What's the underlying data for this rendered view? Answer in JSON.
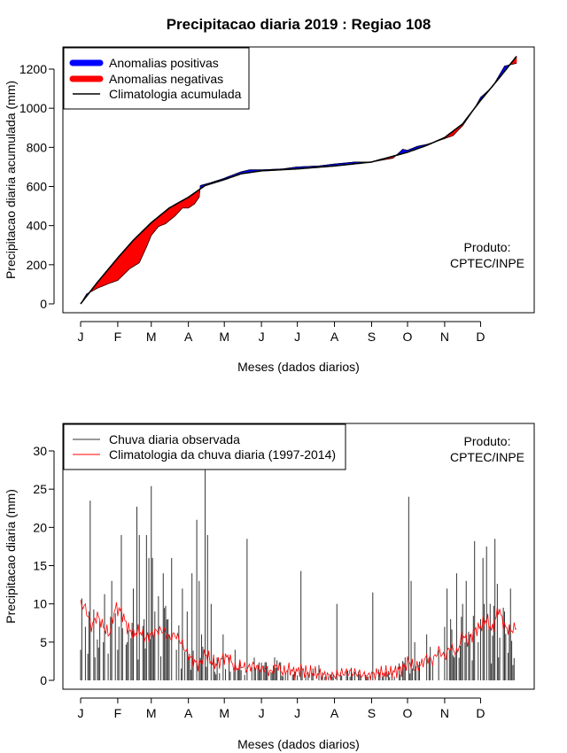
{
  "figure_title": "Precipitacao diaria 2019 : Regiao 108",
  "chart_data": [
    {
      "type": "area",
      "title": "Precipitacao diaria 2019 : Regiao 108",
      "xlabel": "Meses (dados diarios)",
      "ylabel": "Precipitacao diaria acumulada (mm)",
      "xlim": [
        1,
        365
      ],
      "ylim": [
        0,
        1300
      ],
      "month_labels": [
        "J",
        "F",
        "M",
        "A",
        "M",
        "J",
        "J",
        "A",
        "S",
        "O",
        "N",
        "D"
      ],
      "month_days": [
        1,
        32,
        60,
        91,
        121,
        152,
        182,
        213,
        244,
        274,
        305,
        335
      ],
      "y_ticks": [
        0,
        200,
        400,
        600,
        800,
        1000,
        1200
      ],
      "legend": [
        "Anomalias positivas",
        "Anomalias negativas",
        "Climatologia acumulada"
      ],
      "colors": {
        "positive": "#0000ff",
        "negative": "#ff0000",
        "climatology": "#000000"
      },
      "climatology_cumulative": {
        "days": [
          1,
          15,
          32,
          45,
          60,
          75,
          91,
          105,
          121,
          135,
          152,
          182,
          213,
          244,
          274,
          290,
          305,
          320,
          335,
          350,
          365
        ],
        "values": [
          0,
          110,
          235,
          325,
          415,
          490,
          545,
          605,
          635,
          665,
          680,
          690,
          705,
          725,
          775,
          810,
          850,
          920,
          1040,
          1150,
          1265
        ]
      },
      "observed_cumulative": {
        "days": [
          1,
          6,
          15,
          25,
          32,
          42,
          50,
          56,
          60,
          66,
          72,
          80,
          86,
          91,
          96,
          100,
          101,
          110,
          120,
          135,
          142,
          152,
          170,
          182,
          200,
          213,
          230,
          244,
          262,
          270,
          274,
          282,
          290,
          298,
          305,
          312,
          320,
          330,
          335,
          345,
          355,
          365
        ],
        "values": [
          0,
          50,
          80,
          105,
          120,
          180,
          210,
          290,
          350,
          395,
          410,
          450,
          490,
          490,
          510,
          545,
          605,
          620,
          640,
          675,
          685,
          685,
          690,
          700,
          705,
          715,
          725,
          725,
          745,
          790,
          785,
          805,
          815,
          830,
          845,
          860,
          910,
          1000,
          1055,
          1110,
          1215,
          1230
        ]
      },
      "credit": [
        "Produto:",
        "CPTEC/INPE"
      ]
    },
    {
      "type": "bar",
      "xlabel": "Meses (dados diarios)",
      "ylabel": "Precipitacao diaria (mm)",
      "xlim": [
        1,
        365
      ],
      "ylim": [
        0,
        33
      ],
      "month_labels": [
        "J",
        "F",
        "M",
        "A",
        "M",
        "J",
        "J",
        "A",
        "S",
        "O",
        "N",
        "D"
      ],
      "month_days": [
        1,
        32,
        60,
        91,
        121,
        152,
        182,
        213,
        244,
        274,
        305,
        335
      ],
      "y_ticks": [
        0,
        5,
        10,
        15,
        20,
        25,
        30
      ],
      "legend": [
        "Chuva diaria observada",
        "Climatologia da chuva diaria (1997-2014)"
      ],
      "colors": {
        "observed": "#333333",
        "climatology": "#ff0000"
      },
      "observed_daily_peaks": {
        "days": [
          1,
          5,
          9,
          13,
          20,
          27,
          32,
          35,
          40,
          45,
          48,
          50,
          54,
          56,
          58,
          60,
          61,
          63,
          66,
          70,
          74,
          77,
          81,
          86,
          90,
          94,
          98,
          100,
          102,
          105,
          107,
          110,
          115,
          120,
          125,
          130,
          140,
          163,
          185,
          200,
          215,
          245,
          275,
          277,
          280,
          283,
          290,
          295,
          300,
          305,
          307,
          310,
          313,
          315,
          320,
          323,
          326,
          330,
          333,
          335,
          337,
          340,
          343,
          347,
          350,
          355,
          360,
          362
        ],
        "values": [
          4,
          7,
          23.5,
          3,
          5,
          13,
          4,
          19,
          5,
          12,
          22.7,
          19,
          8,
          19,
          16,
          25.4,
          16,
          9,
          11,
          14,
          8,
          16,
          4,
          12,
          9,
          14,
          21,
          13,
          6,
          27.8,
          19,
          10,
          3,
          6,
          3,
          4,
          18.5,
          3,
          14.3,
          2,
          10,
          11.5,
          24,
          13,
          5,
          2,
          6,
          2,
          4,
          7,
          12,
          8,
          3,
          14,
          10,
          13,
          6,
          18.2,
          5,
          8,
          16,
          17.5,
          10,
          18.5,
          3,
          9,
          12,
          2
        ]
      },
      "climatology_daily": {
        "days": [
          1,
          5,
          10,
          15,
          20,
          25,
          30,
          35,
          40,
          45,
          50,
          55,
          60,
          65,
          70,
          75,
          80,
          85,
          90,
          95,
          100,
          105,
          110,
          115,
          120,
          125,
          130,
          135,
          140,
          145,
          150,
          155,
          160,
          165,
          170,
          175,
          180,
          185,
          190,
          195,
          200,
          210,
          220,
          230,
          240,
          250,
          260,
          270,
          275,
          280,
          285,
          290,
          295,
          300,
          305,
          310,
          315,
          320,
          325,
          330,
          335,
          340,
          345,
          350,
          355,
          360,
          365
        ],
        "values": [
          10,
          9.5,
          7,
          8.5,
          7,
          6,
          9.5,
          9,
          7,
          6,
          6.5,
          5.5,
          6,
          6.5,
          6.5,
          5.5,
          6,
          5,
          3.5,
          2.5,
          2,
          3.5,
          2.5,
          2,
          3,
          3,
          1.5,
          2,
          1.5,
          2,
          1.5,
          1.5,
          1,
          2,
          1,
          1.5,
          1,
          1.5,
          1,
          1,
          0.8,
          0.5,
          1,
          1,
          0.5,
          1,
          1,
          1.5,
          2.5,
          1.5,
          2,
          3,
          2.5,
          4,
          3,
          4.5,
          3.5,
          6,
          5,
          6.5,
          7,
          8,
          6.5,
          9.5,
          7,
          6.5,
          7
        ]
      },
      "credit": [
        "Produto:",
        "CPTEC/INPE"
      ]
    }
  ]
}
